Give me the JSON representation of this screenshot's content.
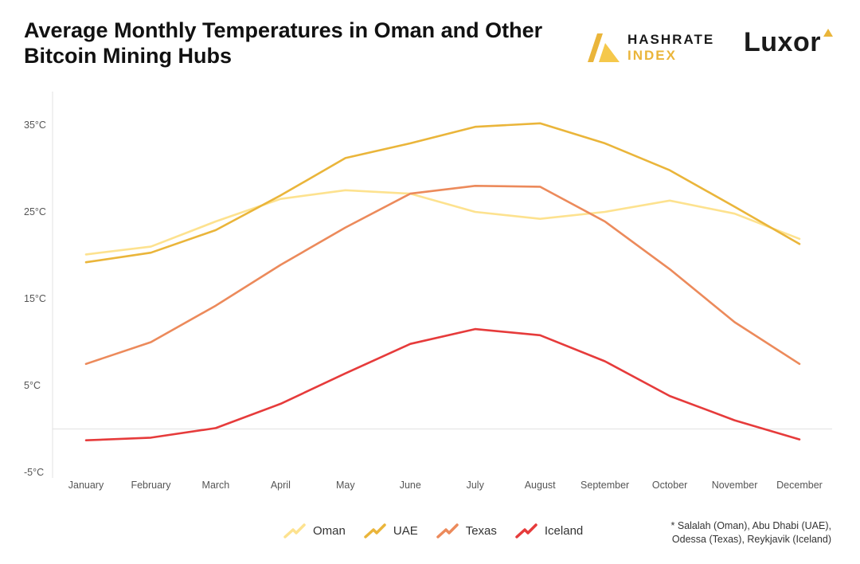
{
  "header": {
    "title": "Average Monthly Temperatures in Oman and Other Bitcoin Mining Hubs"
  },
  "brands": {
    "hashrate_line1": "HASHRATE",
    "hashrate_line2": "INDEX",
    "luxor": "Luxor",
    "accent_color": "#eab53a"
  },
  "chart_data": {
    "type": "line",
    "title": "Average Monthly Temperatures in Oman and Other Bitcoin Mining Hubs",
    "xlabel": "",
    "ylabel": "",
    "categories": [
      "January",
      "February",
      "March",
      "April",
      "May",
      "June",
      "July",
      "August",
      "September",
      "October",
      "November",
      "December"
    ],
    "y_ticks": [
      35,
      25,
      15,
      5,
      -5
    ],
    "y_tick_labels": [
      "35°C",
      "25°C",
      "15°C",
      "5°C",
      "-5°C"
    ],
    "ylim": [
      -5,
      39
    ],
    "grid": false,
    "zero_line": true,
    "legend_position": "bottom",
    "series": [
      {
        "name": "Oman",
        "color": "#fde28f",
        "values": [
          20.1,
          21.0,
          23.9,
          26.5,
          27.5,
          27.1,
          25.0,
          24.2,
          25.0,
          26.3,
          24.8,
          21.9
        ]
      },
      {
        "name": "UAE",
        "color": "#eab53a",
        "values": [
          19.2,
          20.3,
          22.9,
          26.9,
          31.2,
          32.9,
          34.8,
          35.2,
          32.9,
          29.8,
          25.6,
          21.3
        ]
      },
      {
        "name": "Texas",
        "color": "#ec8a5b",
        "values": [
          7.5,
          10.0,
          14.2,
          18.9,
          23.2,
          27.1,
          28.0,
          27.9,
          23.9,
          18.4,
          12.3,
          7.5
        ]
      },
      {
        "name": "Iceland",
        "color": "#e63b3b",
        "values": [
          -1.3,
          -1.0,
          0.1,
          2.9,
          6.4,
          9.8,
          11.5,
          10.8,
          7.8,
          3.8,
          1.0,
          -1.2
        ]
      }
    ]
  },
  "footnote": {
    "text": "* Salalah (Oman), Abu Dhabi (UAE),\nOdessa (Texas), Reykjavik (Iceland)"
  }
}
